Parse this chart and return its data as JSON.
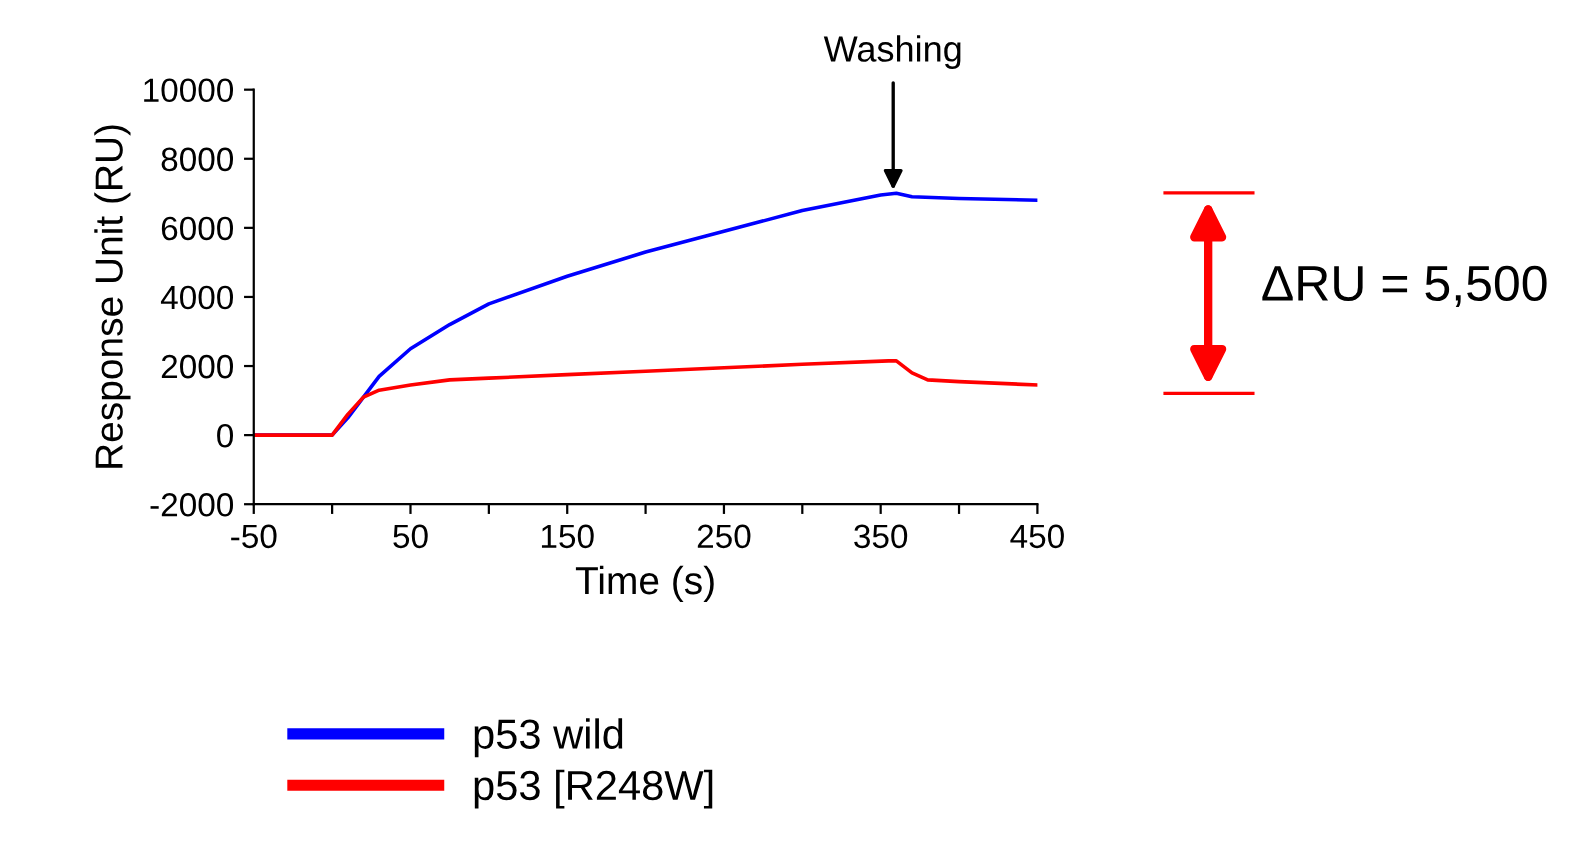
{
  "chart_data": {
    "type": "line",
    "xlabel": "Time (s)",
    "ylabel": "Response Unit (RU)",
    "xlim": [
      -50,
      450
    ],
    "xticks": [
      -50,
      {
        "value": 0,
        "label": null
      },
      50,
      {
        "value": 100,
        "label": null
      },
      150,
      {
        "value": 200,
        "label": null
      },
      250,
      {
        "value": 300,
        "label": null
      },
      350,
      {
        "value": 400,
        "label": null
      },
      450
    ],
    "ylim": [
      -2000,
      10000
    ],
    "yticks": [
      -2000,
      0,
      2000,
      4000,
      6000,
      8000,
      10000
    ],
    "grid": false,
    "legend": "bottom",
    "line_style": "solid",
    "marker": "none",
    "series": [
      {
        "name": "p53 wild",
        "color": "#0000ff",
        "x": [
          -50,
          0,
          10,
          20,
          30,
          50,
          75,
          100,
          150,
          200,
          250,
          300,
          350,
          360,
          370,
          400,
          450
        ],
        "values": [
          0,
          0,
          500,
          1100,
          1700,
          2500,
          3200,
          3800,
          4600,
          5300,
          5900,
          6500,
          6950,
          7000,
          6900,
          6850,
          6800
        ]
      },
      {
        "name": "p53 [R248W]",
        "color": "#ff0000",
        "x": [
          -50,
          0,
          10,
          20,
          30,
          50,
          75,
          100,
          150,
          200,
          250,
          300,
          355,
          360,
          370,
          380,
          400,
          450
        ],
        "values": [
          0,
          0,
          600,
          1100,
          1300,
          1450,
          1600,
          1650,
          1750,
          1850,
          1950,
          2050,
          2150,
          2150,
          1800,
          1600,
          1550,
          1450
        ]
      }
    ],
    "annotations": [
      {
        "text": "Washing",
        "x": 358,
        "y": 7100
      },
      "ΔRU = 5,500"
    ]
  }
}
